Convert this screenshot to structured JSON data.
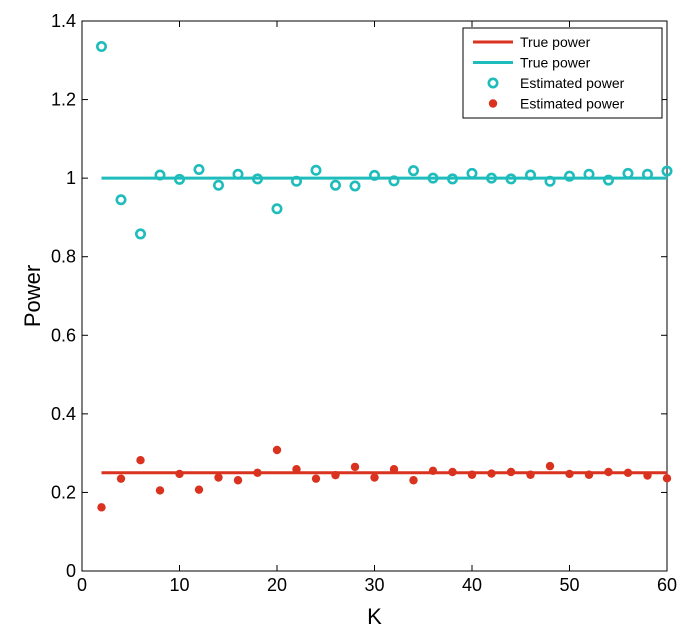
{
  "chart_data": {
    "type": "scatter",
    "xlabel": "K",
    "ylabel": "Power",
    "xlim": [
      0,
      60
    ],
    "ylim": [
      0,
      1.4
    ],
    "xticks": [
      "0",
      "10",
      "20",
      "30",
      "40",
      "50",
      "60"
    ],
    "yticks": [
      "0",
      "0.2",
      "0.4",
      "0.6",
      "0.8",
      "1",
      "1.2",
      "1.4"
    ],
    "grid": false,
    "legend_position": "top-right",
    "colors": {
      "red": "#d9321e",
      "cyan": "#1fbcbc"
    },
    "series": [
      {
        "name": "True power",
        "kind": "line",
        "color": "#d9321e",
        "x": [
          2,
          60
        ],
        "y": [
          0.25,
          0.25
        ]
      },
      {
        "name": "True power",
        "kind": "line",
        "color": "#1fbcbc",
        "x": [
          2,
          60
        ],
        "y": [
          1.0,
          1.0
        ]
      },
      {
        "name": "Estimated power",
        "kind": "marker-open",
        "color": "#1fbcbc",
        "x": [
          2,
          4,
          6,
          8,
          10,
          12,
          14,
          16,
          18,
          20,
          22,
          24,
          26,
          28,
          30,
          32,
          34,
          36,
          38,
          40,
          42,
          44,
          46,
          48,
          50,
          52,
          54,
          56,
          58,
          60
        ],
        "y": [
          1.335,
          0.945,
          0.858,
          1.008,
          0.997,
          1.022,
          0.982,
          1.01,
          0.998,
          0.922,
          0.992,
          1.02,
          0.982,
          0.98,
          1.007,
          0.993,
          1.019,
          1.0,
          0.998,
          1.012,
          1.0,
          0.998,
          1.008,
          0.992,
          1.005,
          1.01,
          0.995,
          1.012,
          1.01,
          1.018
        ]
      },
      {
        "name": "Estimated power",
        "kind": "marker-filled",
        "color": "#d9321e",
        "x": [
          2,
          4,
          6,
          8,
          10,
          12,
          14,
          16,
          18,
          20,
          22,
          24,
          26,
          28,
          30,
          32,
          34,
          36,
          38,
          40,
          42,
          44,
          46,
          48,
          50,
          52,
          54,
          56,
          58,
          60
        ],
        "y": [
          0.162,
          0.235,
          0.282,
          0.205,
          0.247,
          0.207,
          0.238,
          0.231,
          0.25,
          0.308,
          0.259,
          0.235,
          0.244,
          0.265,
          0.238,
          0.259,
          0.231,
          0.255,
          0.252,
          0.245,
          0.248,
          0.252,
          0.245,
          0.267,
          0.247,
          0.245,
          0.252,
          0.25,
          0.243,
          0.236
        ]
      }
    ]
  }
}
